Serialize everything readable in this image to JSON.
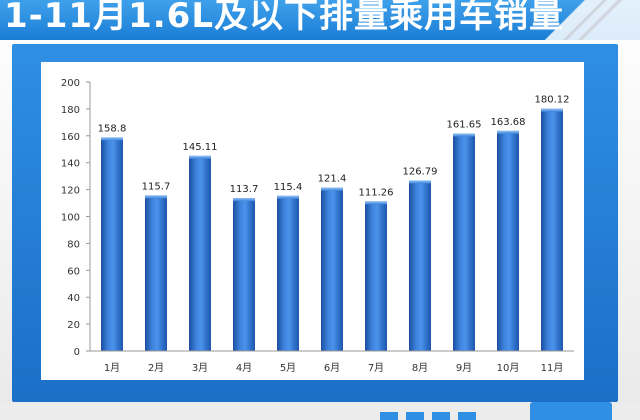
{
  "header": {
    "title": "1-11月1.6L及以下排量乘用车销量"
  },
  "chart_data": {
    "type": "bar",
    "categories": [
      "1月",
      "2月",
      "3月",
      "4月",
      "5月",
      "6月",
      "7月",
      "8月",
      "9月",
      "10月",
      "11月"
    ],
    "values": [
      158.8,
      115.7,
      145.11,
      113.7,
      115.4,
      121.4,
      111.26,
      126.79,
      161.65,
      163.68,
      180.12
    ],
    "value_labels": [
      "158.8",
      "115.7",
      "145.11",
      "113.7",
      "115.4",
      "121.4",
      "111.26",
      "126.79",
      "161.65",
      "163.68",
      "180.12"
    ],
    "ylim": [
      0,
      200
    ],
    "yticks": [
      0,
      20,
      40,
      60,
      80,
      100,
      120,
      140,
      160,
      180,
      200
    ],
    "grid": false,
    "title": "",
    "xlabel": "",
    "ylabel": "",
    "bar_color": "#2a6fd0"
  }
}
